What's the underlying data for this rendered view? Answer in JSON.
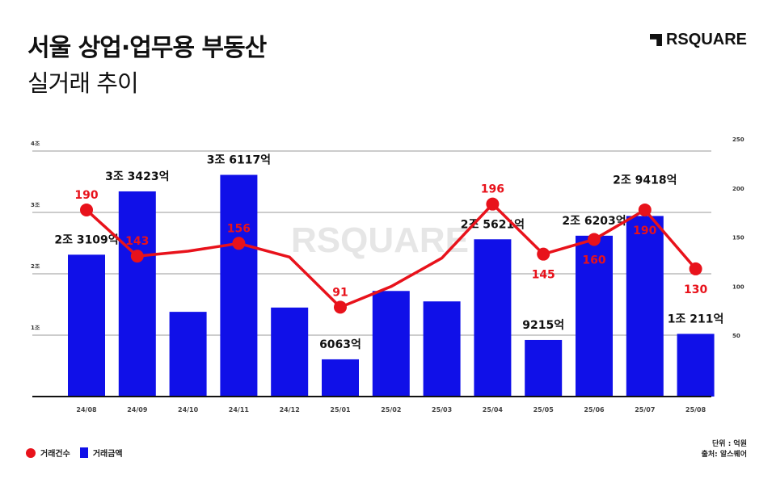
{
  "header": {
    "title_line1": "서울 상업·업무용 부동산",
    "title_line2": "실거래 추이",
    "logo_text": "RSQUARE"
  },
  "watermark": "RSQUARE",
  "legend": {
    "count_label": "거래건수",
    "amount_label": "거래금액"
  },
  "notes": {
    "unit": "단위 : 억원",
    "source": "출처: 알스퀘어"
  },
  "colors": {
    "bar": "#1010e8",
    "line": "#e8121b",
    "grid": "#999999"
  },
  "chart_data": {
    "type": "bar+line",
    "categories": [
      "24/08",
      "24/09",
      "24/10",
      "24/11",
      "24/12",
      "25/01",
      "25/02",
      "25/03",
      "25/04",
      "25/05",
      "25/06",
      "25/07",
      "25/08"
    ],
    "series": [
      {
        "name": "거래금액",
        "type": "bar",
        "axis": "left",
        "unit": "조",
        "values": [
          2.3109,
          3.3423,
          1.38,
          3.6117,
          1.45,
          0.6063,
          1.72,
          1.55,
          2.5621,
          0.9215,
          2.6203,
          2.9418,
          1.0211
        ],
        "labels": [
          "2조 3109억",
          "3조 3423억",
          "",
          "3조 6117억",
          "",
          "6063억",
          "",
          "",
          "2조 5621억",
          "9215억",
          "2조 6203억",
          "2조 9418억",
          "1조 211억"
        ]
      },
      {
        "name": "거래건수",
        "type": "line",
        "axis": "right",
        "values": [
          190,
          143,
          148,
          156,
          142,
          91,
          112,
          141,
          196,
          145,
          160,
          190,
          130
        ],
        "labels": [
          "190",
          "143",
          "",
          "156",
          "",
          "91",
          "",
          "",
          "196",
          "145",
          "160",
          "190",
          "130"
        ]
      }
    ],
    "left_axis": {
      "ylim": [
        0,
        4
      ],
      "ticks": [
        "1조",
        "2조",
        "3조",
        "4조"
      ]
    },
    "right_axis": {
      "ylim": [
        0,
        250
      ],
      "ticks": [
        "50",
        "100",
        "150",
        "200",
        "250"
      ]
    },
    "grid": true,
    "legend_position": "bottom-left"
  }
}
